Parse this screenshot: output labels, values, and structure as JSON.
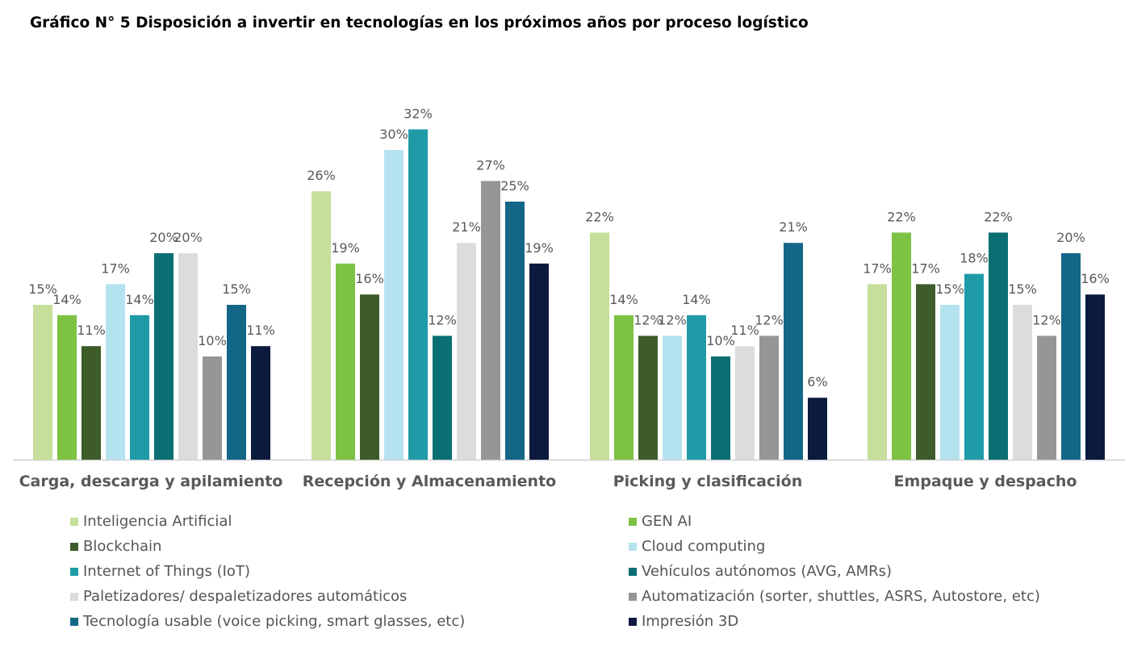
{
  "chart_data": {
    "type": "bar",
    "title": "Gráfico N° 5 Disposición a invertir en tecnologías en los próximos años por proceso logístico",
    "categories": [
      "Carga, descarga y apilamiento",
      "Recepción y Almacenamiento",
      "Picking y clasificación",
      "Empaque y despacho"
    ],
    "ylim": [
      0,
      33
    ],
    "grid": false,
    "legend_position": "bottom",
    "value_suffix": "%",
    "series": [
      {
        "name": "Inteligencia Artificial",
        "color": "#c6df9a",
        "values": [
          15,
          26,
          22,
          17
        ]
      },
      {
        "name": "GEN AI",
        "color": "#7dc243",
        "values": [
          14,
          19,
          14,
          22
        ]
      },
      {
        "name": "Blockchain",
        "color": "#3e5b2a",
        "values": [
          11,
          16,
          12,
          17
        ]
      },
      {
        "name": "Cloud computing",
        "color": "#b5e2ef",
        "values": [
          17,
          30,
          12,
          15
        ]
      },
      {
        "name": "Internet of Things (IoT)",
        "color": "#1f9ba8",
        "values": [
          14,
          32,
          14,
          18
        ]
      },
      {
        "name": "Vehículos autónomos (AVG, AMRs)",
        "color": "#0b6e73",
        "values": [
          20,
          12,
          10,
          22
        ]
      },
      {
        "name": "Paletizadores/ despaletizadores automáticos",
        "color": "#dcdcdc",
        "values": [
          20,
          21,
          11,
          15
        ]
      },
      {
        "name": "Automatización (sorter, shuttles, ASRS, Autostore, etc)",
        "color": "#949698",
        "values": [
          10,
          27,
          12,
          12
        ]
      },
      {
        "name": "Tecnología usable (voice picking, smart glasses, etc)",
        "color": "#136686",
        "values": [
          15,
          25,
          21,
          20
        ]
      },
      {
        "name": "Impresión 3D",
        "color": "#0c1a3e",
        "values": [
          11,
          19,
          6,
          16
        ]
      }
    ]
  }
}
